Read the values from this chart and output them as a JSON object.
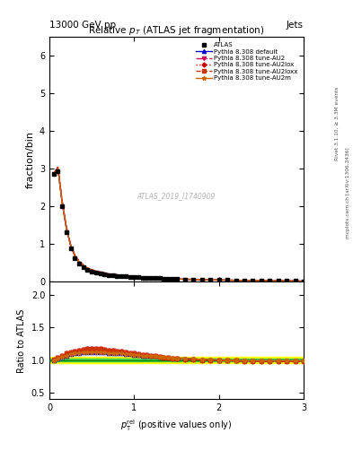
{
  "title": "Relative $p_T$ (ATLAS jet fragmentation)",
  "header_left": "13000 GeV pp",
  "header_right": "Jets",
  "ylabel_main": "fraction/bin",
  "ylabel_ratio": "Ratio to ATLAS",
  "right_label1": "Rivet 3.1.10, ≥ 3.3M events",
  "right_label2": "mcplots.cern.ch [arXiv:1306.3436]",
  "watermark": "ATLAS_2019_I1740909",
  "main_ylim": [
    0,
    6.5
  ],
  "main_yticks": [
    0,
    1,
    2,
    3,
    4,
    5,
    6
  ],
  "ratio_ylim": [
    0.4,
    2.2
  ],
  "ratio_yticks": [
    0.5,
    1.0,
    1.5,
    2.0
  ],
  "xlim": [
    0,
    3.0
  ],
  "xticks": [
    0,
    1,
    2,
    3
  ],
  "x_data": [
    0.05,
    0.1,
    0.15,
    0.2,
    0.25,
    0.3,
    0.35,
    0.4,
    0.45,
    0.5,
    0.55,
    0.6,
    0.65,
    0.7,
    0.75,
    0.8,
    0.85,
    0.9,
    0.95,
    1.0,
    1.05,
    1.1,
    1.15,
    1.2,
    1.25,
    1.3,
    1.35,
    1.4,
    1.45,
    1.5,
    1.6,
    1.7,
    1.8,
    1.9,
    2.0,
    2.1,
    2.2,
    2.3,
    2.4,
    2.5,
    2.6,
    2.7,
    2.8,
    2.9,
    3.0
  ],
  "atlas_y": [
    2.85,
    2.92,
    2.0,
    1.32,
    0.88,
    0.62,
    0.47,
    0.38,
    0.31,
    0.27,
    0.24,
    0.22,
    0.2,
    0.18,
    0.17,
    0.16,
    0.15,
    0.14,
    0.13,
    0.12,
    0.115,
    0.11,
    0.105,
    0.1,
    0.095,
    0.09,
    0.085,
    0.08,
    0.075,
    0.07,
    0.065,
    0.06,
    0.055,
    0.05,
    0.046,
    0.042,
    0.038,
    0.035,
    0.032,
    0.029,
    0.026,
    0.024,
    0.022,
    0.02,
    0.018
  ],
  "default_ratio": [
    1.0,
    1.03,
    1.05,
    1.07,
    1.09,
    1.1,
    1.11,
    1.12,
    1.12,
    1.12,
    1.12,
    1.12,
    1.12,
    1.11,
    1.11,
    1.1,
    1.1,
    1.09,
    1.09,
    1.08,
    1.08,
    1.07,
    1.07,
    1.06,
    1.06,
    1.05,
    1.05,
    1.04,
    1.04,
    1.03,
    1.03,
    1.02,
    1.01,
    1.01,
    1.0,
    1.0,
    1.0,
    0.99,
    0.99,
    0.99,
    0.99,
    0.99,
    0.99,
    0.99,
    0.99
  ],
  "au2_ratio": [
    1.0,
    1.04,
    1.07,
    1.1,
    1.12,
    1.14,
    1.15,
    1.16,
    1.17,
    1.17,
    1.17,
    1.17,
    1.16,
    1.15,
    1.15,
    1.14,
    1.13,
    1.12,
    1.11,
    1.1,
    1.09,
    1.08,
    1.08,
    1.07,
    1.06,
    1.05,
    1.04,
    1.04,
    1.03,
    1.02,
    1.01,
    1.01,
    1.0,
    1.0,
    1.0,
    0.99,
    0.99,
    0.98,
    0.98,
    0.98,
    0.98,
    0.98,
    0.98,
    0.98,
    0.98
  ],
  "au2lox_ratio": [
    1.01,
    1.04,
    1.07,
    1.1,
    1.12,
    1.14,
    1.15,
    1.16,
    1.17,
    1.17,
    1.17,
    1.17,
    1.16,
    1.15,
    1.15,
    1.14,
    1.13,
    1.12,
    1.11,
    1.1,
    1.09,
    1.08,
    1.08,
    1.07,
    1.06,
    1.05,
    1.04,
    1.04,
    1.03,
    1.02,
    1.01,
    1.01,
    1.0,
    1.0,
    1.0,
    0.99,
    0.99,
    0.98,
    0.98,
    0.98,
    0.98,
    0.98,
    0.98,
    0.98,
    0.98
  ],
  "au2loxx_ratio": [
    1.01,
    1.04,
    1.07,
    1.1,
    1.12,
    1.14,
    1.15,
    1.16,
    1.17,
    1.17,
    1.17,
    1.17,
    1.16,
    1.15,
    1.15,
    1.14,
    1.13,
    1.12,
    1.11,
    1.1,
    1.09,
    1.08,
    1.08,
    1.07,
    1.06,
    1.05,
    1.04,
    1.04,
    1.03,
    1.02,
    1.01,
    1.01,
    1.0,
    1.0,
    1.0,
    0.99,
    0.99,
    0.98,
    0.98,
    0.98,
    0.98,
    0.98,
    0.98,
    0.98,
    0.98
  ],
  "au2m_ratio": [
    1.0,
    1.03,
    1.05,
    1.07,
    1.09,
    1.1,
    1.11,
    1.12,
    1.12,
    1.12,
    1.12,
    1.12,
    1.12,
    1.11,
    1.11,
    1.1,
    1.1,
    1.09,
    1.09,
    1.08,
    1.08,
    1.07,
    1.07,
    1.06,
    1.06,
    1.05,
    1.05,
    1.04,
    1.04,
    1.03,
    1.03,
    1.02,
    1.01,
    1.01,
    1.0,
    1.0,
    1.0,
    0.99,
    0.99,
    0.99,
    0.99,
    0.99,
    0.99,
    0.99,
    0.99
  ],
  "error_band_yellow": 0.05,
  "error_band_green": 0.02,
  "color_default": "#0000cc",
  "color_au2": "#cc0055",
  "color_au2lox": "#cc0000",
  "color_au2loxx": "#cc3300",
  "color_au2m": "#cc6600",
  "band_yellow": "#ffff00",
  "band_green": "#44cc44"
}
